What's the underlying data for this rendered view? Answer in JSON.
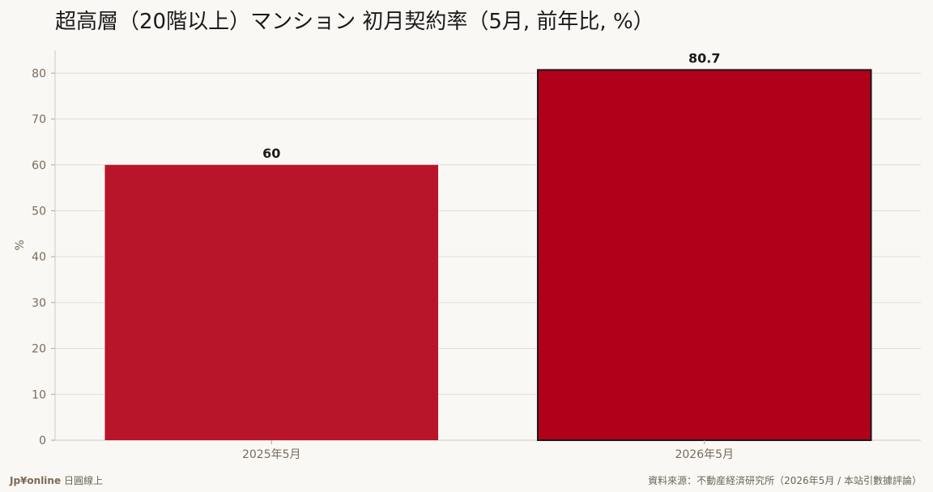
{
  "title": {
    "text": "超高層（20階以上）マンション 初月契約率（5月, 前年比, %）"
  },
  "footer": {
    "brand": "Jp¥online",
    "brand_sub": "日圓線上",
    "source": "資料來源：不動産経済研究所（2026年5月 / 本站引數據評論）"
  },
  "colors": {
    "background": "#faf8f4",
    "bar_prev": "#b8152b",
    "bar_current": "#b1001a",
    "bar_current_border": "#1a1a1a",
    "grid": "#e2ddd5",
    "axis_text": "#776b5d"
  },
  "chart_data": {
    "type": "bar",
    "title": "超高層（20階以上）マンション 初月契約率（5月, 前年比, %）",
    "categories": [
      "2025年5月",
      "2026年5月"
    ],
    "values": [
      60,
      80.7
    ],
    "data_labels": [
      "60",
      "80.7"
    ],
    "xlabel": "",
    "ylabel": "%",
    "ylim": [
      0,
      85
    ],
    "yticks": [
      0,
      10,
      20,
      30,
      40,
      50,
      60,
      70,
      80
    ],
    "grid": true,
    "highlight_index": 1
  }
}
